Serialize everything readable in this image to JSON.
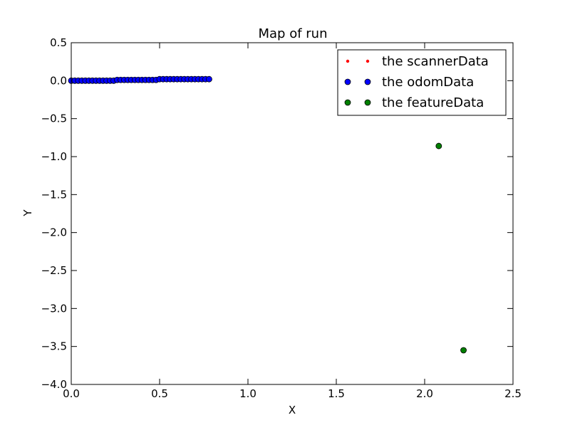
{
  "chart_data": {
    "type": "scatter",
    "title": "Map of run",
    "xlabel": "X",
    "ylabel": "Y",
    "xlim": [
      0.0,
      2.5
    ],
    "ylim": [
      -4.0,
      0.5
    ],
    "xticks": [
      0.0,
      0.5,
      1.0,
      1.5,
      2.0,
      2.5
    ],
    "xtick_labels": [
      "0.0",
      "0.5",
      "1.0",
      "1.5",
      "2.0",
      "2.5"
    ],
    "yticks": [
      0.5,
      0.0,
      -0.5,
      -1.0,
      -1.5,
      -2.0,
      -2.5,
      -3.0,
      -3.5,
      -4.0
    ],
    "ytick_labels": [
      "0.5",
      "0.0",
      "−0.5",
      "−1.0",
      "−1.5",
      "−2.0",
      "−2.5",
      "−3.0",
      "−3.5",
      "−4.0"
    ],
    "grid": false,
    "legend_position": "top-right",
    "series": [
      {
        "name": "the scannerData",
        "color": "#ff0000",
        "marker": "small-dot",
        "x": [],
        "y": []
      },
      {
        "name": "the odomData",
        "color": "#0000ff",
        "marker": "circle",
        "x": [
          0.0,
          0.02,
          0.04,
          0.06,
          0.08,
          0.1,
          0.12,
          0.14,
          0.16,
          0.18,
          0.2,
          0.22,
          0.24,
          0.26,
          0.28,
          0.3,
          0.32,
          0.34,
          0.36,
          0.38,
          0.4,
          0.42,
          0.44,
          0.46,
          0.48,
          0.5,
          0.52,
          0.54,
          0.56,
          0.58,
          0.6,
          0.62,
          0.64,
          0.66,
          0.68,
          0.7,
          0.72,
          0.74,
          0.76,
          0.78
        ],
        "y": [
          0.0,
          0.0,
          0.0,
          0.0,
          0.0,
          0.0,
          0.0,
          0.0,
          0.0,
          0.0,
          0.0,
          0.0,
          0.0,
          0.01,
          0.01,
          0.01,
          0.01,
          0.01,
          0.01,
          0.01,
          0.01,
          0.01,
          0.01,
          0.01,
          0.01,
          0.02,
          0.02,
          0.02,
          0.02,
          0.02,
          0.02,
          0.02,
          0.02,
          0.02,
          0.02,
          0.02,
          0.02,
          0.02,
          0.02,
          0.02
        ]
      },
      {
        "name": "the featureData",
        "color": "#007f00",
        "marker": "circle",
        "x": [
          2.08,
          2.22
        ],
        "y": [
          -0.86,
          -3.55
        ]
      }
    ]
  }
}
